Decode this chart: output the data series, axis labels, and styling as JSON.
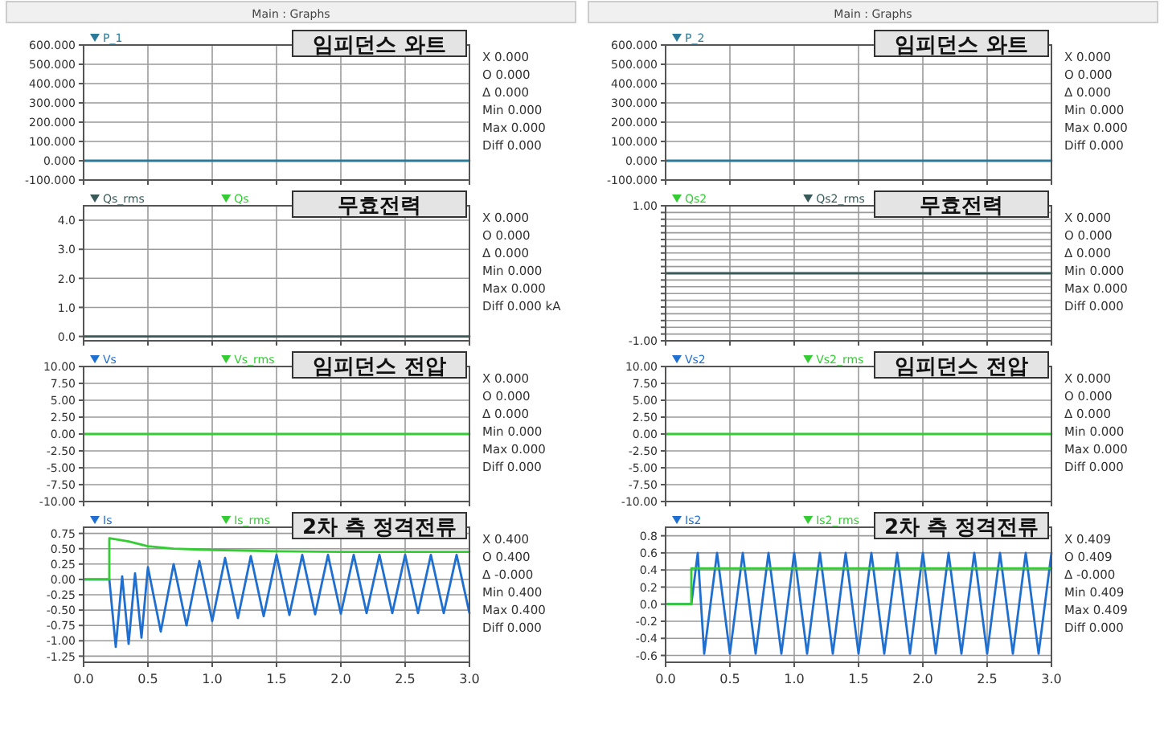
{
  "chart_data": [
    {
      "type": "line",
      "subtitle": "Main : Graphs",
      "title": "임피던스 와트",
      "xlim": [
        0,
        3
      ],
      "xticks": [
        0,
        0.5,
        1,
        1.5,
        2,
        2.5,
        3
      ],
      "ylim": [
        -100,
        600
      ],
      "yticks": [
        {
          "value": -100,
          "label": "-100.000"
        },
        {
          "value": 0,
          "label": "0.000"
        },
        {
          "value": 100,
          "label": "100.000"
        },
        {
          "value": 200,
          "label": "200.000"
        },
        {
          "value": 300,
          "label": "300.000"
        },
        {
          "value": 400,
          "label": "400.000"
        },
        {
          "value": 500,
          "label": "500.000"
        },
        {
          "value": 600,
          "label": "600.000"
        }
      ],
      "grid": true,
      "legend": "top left",
      "tick_labels": "y",
      "series": [
        {
          "name": "P_1",
          "color": "#2b7a9a",
          "x": [
            0,
            3
          ],
          "values": [
            0,
            0
          ]
        }
      ],
      "annotations": [
        "X 0.000",
        "O 0.000",
        "Δ 0.000",
        "Min 0.000",
        "Max 0.000",
        "Diff 0.000"
      ]
    },
    {
      "type": "line",
      "subtitle": "Main : Graphs",
      "title": "임피던스 와트",
      "xlim": [
        0,
        3
      ],
      "xticks": [
        0,
        0.5,
        1,
        1.5,
        2,
        2.5,
        3
      ],
      "ylim": [
        -100,
        600
      ],
      "yticks": [
        {
          "value": -100,
          "label": "-100.000"
        },
        {
          "value": 0,
          "label": "0.000"
        },
        {
          "value": 100,
          "label": "100.000"
        },
        {
          "value": 200,
          "label": "200.000"
        },
        {
          "value": 300,
          "label": "300.000"
        },
        {
          "value": 400,
          "label": "400.000"
        },
        {
          "value": 500,
          "label": "500.000"
        },
        {
          "value": 600,
          "label": "600.000"
        }
      ],
      "grid": true,
      "legend": "top left",
      "tick_labels": "y",
      "series": [
        {
          "name": "P_2",
          "color": "#2b7a9a",
          "x": [
            0,
            3
          ],
          "values": [
            0,
            0
          ]
        }
      ],
      "annotations": [
        "X 0.000",
        "O 0.000",
        "Δ 0.000",
        "Min 0.000",
        "Max 0.000",
        "Diff 0.000"
      ]
    },
    {
      "type": "line",
      "title": "무효전력",
      "xlim": [
        0,
        3
      ],
      "xticks": [
        0,
        0.5,
        1,
        1.5,
        2,
        2.5,
        3
      ],
      "ylim": [
        -0.15,
        4.5
      ],
      "yticks": [
        {
          "value": 0,
          "label": "0.0"
        },
        {
          "value": 1,
          "label": "1.0"
        },
        {
          "value": 2,
          "label": "2.0"
        },
        {
          "value": 3,
          "label": "3.0"
        },
        {
          "value": 4,
          "label": "4.0"
        }
      ],
      "grid": true,
      "legend": "top left",
      "tick_labels": "y",
      "series": [
        {
          "name": "Qs_rms",
          "color": "#3a5a5a",
          "x": [
            0,
            3
          ],
          "values": [
            0,
            0
          ]
        },
        {
          "name": "Qs",
          "color": "#33cc33",
          "values": [
            null,
            null
          ]
        }
      ],
      "annotations": [
        "X 0.000",
        "O 0.000",
        "Δ 0.000",
        "Min 0.000",
        "Max 0.000",
        "Diff 0.000 kA"
      ]
    },
    {
      "type": "line",
      "title": "무효전력",
      "xlim": [
        0,
        3
      ],
      "xticks": [
        0,
        0.5,
        1,
        1.5,
        2,
        2.5,
        3
      ],
      "ylim": [
        -1,
        1
      ],
      "yticks": [
        {
          "value": -1,
          "label": "-1.00"
        },
        {
          "value": -0.9,
          "label": null
        },
        {
          "value": -0.8,
          "label": null
        },
        {
          "value": -0.7,
          "label": null
        },
        {
          "value": -0.6,
          "label": null
        },
        {
          "value": -0.5,
          "label": null
        },
        {
          "value": -0.4,
          "label": null
        },
        {
          "value": -0.3,
          "label": null
        },
        {
          "value": -0.2,
          "label": null
        },
        {
          "value": -0.1,
          "label": null
        },
        {
          "value": 0,
          "label": null
        },
        {
          "value": 0.1,
          "label": null
        },
        {
          "value": 0.2,
          "label": null
        },
        {
          "value": 0.3,
          "label": null
        },
        {
          "value": 0.4,
          "label": null
        },
        {
          "value": 0.5,
          "label": null
        },
        {
          "value": 0.6,
          "label": null
        },
        {
          "value": 0.7,
          "label": null
        },
        {
          "value": 0.8,
          "label": null
        },
        {
          "value": 0.9,
          "label": null
        },
        {
          "value": 1,
          "label": "1.00"
        }
      ],
      "grid": true,
      "legend": "top left",
      "tick_labels": "y",
      "series": [
        {
          "name": "Qs2",
          "color": "#33cc33",
          "values": [
            null,
            null
          ]
        },
        {
          "name": "Qs2_rms",
          "color": "#3a5a5a",
          "x": [
            0,
            3
          ],
          "values": [
            0,
            0
          ]
        }
      ],
      "annotations": [
        "X 0.000",
        "O 0.000",
        "Δ 0.000",
        "Min 0.000",
        "Max 0.000",
        "Diff 0.000"
      ]
    },
    {
      "type": "line",
      "title": "임피던스 전압",
      "xlim": [
        0,
        3
      ],
      "xticks": [
        0,
        0.5,
        1,
        1.5,
        2,
        2.5,
        3
      ],
      "ylim": [
        -10,
        10
      ],
      "yticks": [
        {
          "value": -10,
          "label": "-10.00"
        },
        {
          "value": -7.5,
          "label": "-7.50"
        },
        {
          "value": -5,
          "label": "-5.00"
        },
        {
          "value": -2.5,
          "label": "-2.50"
        },
        {
          "value": 0,
          "label": "0.00"
        },
        {
          "value": 2.5,
          "label": "2.50"
        },
        {
          "value": 5,
          "label": "5.00"
        },
        {
          "value": 7.5,
          "label": "7.50"
        },
        {
          "value": 10,
          "label": "10.00"
        }
      ],
      "grid": true,
      "legend": "top left",
      "tick_labels": "y",
      "series": [
        {
          "name": "Vs",
          "color": "#1f6fd1",
          "values": [
            null,
            null
          ]
        },
        {
          "name": "Vs_rms",
          "color": "#33cc33",
          "x": [
            0,
            3
          ],
          "values": [
            0,
            0
          ]
        }
      ],
      "annotations": [
        "X 0.000",
        "O 0.000",
        "Δ 0.000",
        "Min 0.000",
        "Max 0.000",
        "Diff 0.000"
      ]
    },
    {
      "type": "line",
      "title": "임피던스 전압",
      "xlim": [
        0,
        3
      ],
      "xticks": [
        0,
        0.5,
        1,
        1.5,
        2,
        2.5,
        3
      ],
      "ylim": [
        -10,
        10
      ],
      "yticks": [
        {
          "value": -10,
          "label": "-10.00"
        },
        {
          "value": -7.5,
          "label": "-7.50"
        },
        {
          "value": -5,
          "label": "-5.00"
        },
        {
          "value": -2.5,
          "label": "-2.50"
        },
        {
          "value": 0,
          "label": "0.00"
        },
        {
          "value": 2.5,
          "label": "2.50"
        },
        {
          "value": 5,
          "label": "5.00"
        },
        {
          "value": 7.5,
          "label": "7.50"
        },
        {
          "value": 10,
          "label": "10.00"
        }
      ],
      "grid": true,
      "legend": "top left",
      "tick_labels": "y",
      "series": [
        {
          "name": "Vs2",
          "color": "#1f6fd1",
          "values": [
            null,
            null
          ]
        },
        {
          "name": "Vs2_rms",
          "color": "#33cc33",
          "x": [
            0,
            3
          ],
          "values": [
            0,
            0
          ]
        }
      ],
      "annotations": [
        "X 0.000",
        "O 0.000",
        "Δ 0.000",
        "Min 0.000",
        "Max 0.000",
        "Diff 0.000"
      ]
    },
    {
      "type": "line",
      "title": "2차 측 정격전류",
      "xlim": [
        0,
        3
      ],
      "xticks": [
        {
          "value": 0,
          "label": "0.0"
        },
        {
          "value": 0.5,
          "label": "0.5"
        },
        {
          "value": 1,
          "label": "1.0"
        },
        {
          "value": 1.5,
          "label": "1.5"
        },
        {
          "value": 2,
          "label": "2.0"
        },
        {
          "value": 2.5,
          "label": "2.5"
        },
        {
          "value": 3,
          "label": "3.0"
        }
      ],
      "ylim": [
        -1.35,
        0.85
      ],
      "yticks": [
        {
          "value": -1.25,
          "label": "-1.25"
        },
        {
          "value": -1,
          "label": "-1.00"
        },
        {
          "value": -0.75,
          "label": "-0.75"
        },
        {
          "value": -0.5,
          "label": "-0.50"
        },
        {
          "value": -0.25,
          "label": "-0.25"
        },
        {
          "value": 0,
          "label": "0.00"
        },
        {
          "value": 0.25,
          "label": "0.25"
        },
        {
          "value": 0.5,
          "label": "0.50"
        },
        {
          "value": 0.75,
          "label": "0.75"
        }
      ],
      "grid": true,
      "legend": "top left",
      "series": [
        {
          "name": "Is",
          "color": "#1f6fd1",
          "x": [
            0,
            0.2,
            0.25,
            0.3,
            0.35,
            0.4,
            0.45,
            0.5,
            0.6,
            0.7,
            0.8,
            0.9,
            1.0,
            1.1,
            1.2,
            1.3,
            1.4,
            1.5,
            1.6,
            1.7,
            1.8,
            1.9,
            2.0,
            2.1,
            2.2,
            2.3,
            2.4,
            2.5,
            2.6,
            2.7,
            2.8,
            2.9,
            3.0
          ],
          "values": [
            0,
            0,
            -1.1,
            0.05,
            -1.05,
            0.1,
            -0.95,
            0.2,
            -0.85,
            0.25,
            -0.75,
            0.3,
            -0.68,
            0.35,
            -0.63,
            0.38,
            -0.6,
            0.4,
            -0.58,
            0.4,
            -0.57,
            0.4,
            -0.56,
            0.4,
            -0.55,
            0.4,
            -0.55,
            0.4,
            -0.55,
            0.4,
            -0.55,
            0.4,
            -0.55
          ]
        },
        {
          "name": "Is_rms",
          "color": "#33cc33",
          "x": [
            0,
            0.2,
            0.2,
            0.35,
            0.5,
            0.7,
            1.0,
            1.5,
            2.0,
            3.0
          ],
          "values": [
            0,
            0,
            0.67,
            0.62,
            0.54,
            0.5,
            0.48,
            0.46,
            0.45,
            0.45
          ]
        }
      ],
      "annotations": [
        "X 0.400",
        "O 0.400",
        "Δ -0.000",
        "Min 0.400",
        "Max 0.400",
        "Diff 0.000"
      ]
    },
    {
      "type": "line",
      "title": "2차 측 정격전류",
      "xlim": [
        0,
        3
      ],
      "xticks": [
        {
          "value": 0,
          "label": "0.0"
        },
        {
          "value": 0.5,
          "label": "0.5"
        },
        {
          "value": 1,
          "label": "1.0"
        },
        {
          "value": 1.5,
          "label": "1.5"
        },
        {
          "value": 2,
          "label": "2.0"
        },
        {
          "value": 2.5,
          "label": "2.5"
        },
        {
          "value": 3,
          "label": "3.0"
        }
      ],
      "ylim": [
        -0.68,
        0.9
      ],
      "yticks": [
        {
          "value": -0.6,
          "label": "-0.6"
        },
        {
          "value": -0.4,
          "label": "-0.4"
        },
        {
          "value": -0.2,
          "label": "-0.2"
        },
        {
          "value": 0,
          "label": "0.0"
        },
        {
          "value": 0.2,
          "label": "0.2"
        },
        {
          "value": 0.4,
          "label": "0.4"
        },
        {
          "value": 0.6,
          "label": "0.6"
        },
        {
          "value": 0.8,
          "label": "0.8"
        }
      ],
      "grid": true,
      "legend": "top left",
      "series": [
        {
          "name": "Is2",
          "color": "#1f6fd1",
          "x": [
            0,
            0.2,
            0.25,
            0.3,
            0.4,
            0.5,
            0.6,
            0.7,
            0.8,
            0.9,
            1.0,
            1.1,
            1.2,
            1.3,
            1.4,
            1.5,
            1.6,
            1.7,
            1.8,
            1.9,
            2.0,
            2.1,
            2.2,
            2.3,
            2.4,
            2.5,
            2.6,
            2.7,
            2.8,
            2.9,
            3.0
          ],
          "values": [
            0,
            0,
            0.6,
            -0.58,
            0.6,
            -0.58,
            0.6,
            -0.58,
            0.6,
            -0.58,
            0.6,
            -0.58,
            0.6,
            -0.58,
            0.6,
            -0.58,
            0.6,
            -0.58,
            0.6,
            -0.58,
            0.6,
            -0.58,
            0.6,
            -0.58,
            0.6,
            -0.58,
            0.6,
            -0.58,
            0.6,
            -0.58,
            0.6
          ]
        },
        {
          "name": "Is2_rms",
          "color": "#33cc33",
          "x": [
            0,
            0.2,
            0.2,
            3.0
          ],
          "values": [
            0,
            0,
            0.42,
            0.42
          ]
        }
      ],
      "annotations": [
        "X 0.409",
        "O 0.409",
        "Δ -0.000",
        "Min 0.409",
        "Max 0.409",
        "Diff 0.000"
      ]
    }
  ]
}
